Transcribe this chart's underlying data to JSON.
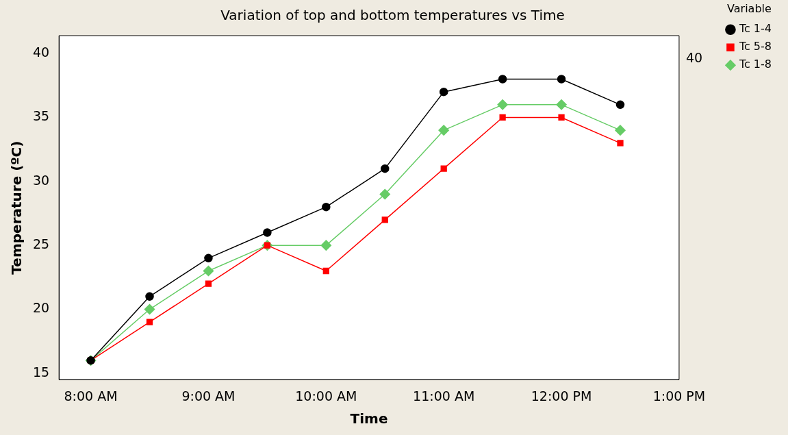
{
  "chart_data": {
    "type": "line",
    "title": "Variation of top and bottom temperatures vs Time",
    "xlabel": "Time",
    "ylabel": "Temperature (ºC)",
    "legend_title": "Variable",
    "legend": "right",
    "grid": false,
    "line_style": "solid",
    "x": [
      8,
      8.5,
      9,
      9.5,
      10,
      10.5,
      11,
      11.5,
      12,
      12.5
    ],
    "xlim": [
      7.73,
      13
    ],
    "xticks": [
      {
        "value": 8,
        "label": "8:00 AM"
      },
      {
        "value": 9,
        "label": "9:00 AM"
      },
      {
        "value": 10,
        "label": "10:00 AM"
      },
      {
        "value": 11,
        "label": "11:00 AM"
      },
      {
        "value": 12,
        "label": "12:00 PM"
      },
      {
        "value": 13,
        "label": "1:00 PM"
      }
    ],
    "ylim": [
      14.5,
      41.4
    ],
    "yticks": [
      15,
      20,
      25,
      30,
      35,
      40
    ],
    "annotations": [
      "40"
    ],
    "series": [
      {
        "name": "Tc 1-4",
        "color": "#000000",
        "marker": "circle",
        "values": [
          16,
          21,
          24,
          26,
          28,
          31,
          37,
          38,
          38,
          36
        ]
      },
      {
        "name": "Tc 5-8",
        "color": "#ff0000",
        "marker": "square",
        "values": [
          16,
          19,
          22,
          25,
          23,
          27,
          31,
          35,
          35,
          33
        ]
      },
      {
        "name": "Tc 1-8",
        "color": "#66cc66",
        "marker": "diamond",
        "values": [
          16,
          20,
          23,
          25,
          25,
          29,
          34,
          36,
          36,
          34
        ]
      }
    ]
  }
}
